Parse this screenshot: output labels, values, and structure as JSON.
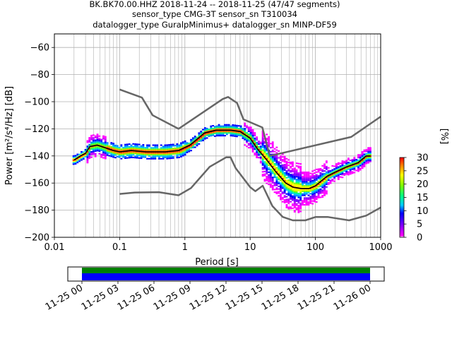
{
  "chart_data": [
    {
      "type": "heatmap",
      "title_lines": [
        "BK.BK70.00.HHZ   2018-11-24 -- 2018-11-25  (47/47 segments)",
        "sensor_type CMG-3T sensor_sn T310034",
        "datalogger_type GuralpMinimus+ datalogger_sn MINP-DF59"
      ],
      "xlabel": "Period [s]",
      "ylabel": "Power [m²/s⁴/Hz] [dB]",
      "xscale": "log",
      "xlim": [
        0.01,
        1000
      ],
      "ylim": [
        -200,
        -50
      ],
      "xticks": [
        0.01,
        0.1,
        1,
        10,
        100,
        1000
      ],
      "xtick_labels": [
        "0.01",
        "0.1",
        "1",
        "10",
        "100",
        "1000"
      ],
      "yticks": [
        -60,
        -80,
        -100,
        -120,
        -140,
        -160,
        -180,
        -200
      ],
      "ytick_labels": [
        "−60",
        "−80",
        "−100",
        "−120",
        "−140",
        "−160",
        "−180",
        "−200"
      ],
      "grid": true,
      "series": [
        {
          "role": "noise-model-high",
          "color": "#666666",
          "points": [
            [
              0.1,
              -91
            ],
            [
              0.22,
              -97
            ],
            [
              0.32,
              -110
            ],
            [
              0.8,
              -120
            ],
            [
              3.8,
              -98
            ],
            [
              4.6,
              -96.5
            ],
            [
              6.3,
              -101
            ],
            [
              7.9,
              -113
            ],
            [
              15.4,
              -119
            ],
            [
              20,
              -140
            ],
            [
              354,
              -126
            ],
            [
              1000,
              -111
            ]
          ]
        },
        {
          "role": "noise-model-low",
          "color": "#666666",
          "points": [
            [
              0.1,
              -168
            ],
            [
              0.17,
              -167
            ],
            [
              0.4,
              -166.7
            ],
            [
              0.8,
              -169
            ],
            [
              1.24,
              -163.7
            ],
            [
              2.4,
              -148
            ],
            [
              4.3,
              -141
            ],
            [
              5,
              -141
            ],
            [
              6,
              -149
            ],
            [
              10,
              -163
            ],
            [
              12,
              -166
            ],
            [
              15.6,
              -162
            ],
            [
              21.9,
              -177
            ],
            [
              31.6,
              -185
            ],
            [
              45,
              -187.5
            ],
            [
              70,
              -187.5
            ],
            [
              101,
              -185
            ],
            [
              154,
              -185
            ],
            [
              328,
              -187.5
            ],
            [
              600,
              -184
            ],
            [
              1000,
              -178
            ]
          ]
        },
        {
          "role": "mode",
          "color": "#000000",
          "points": [
            [
              0.02,
              -143
            ],
            [
              0.025,
              -140
            ],
            [
              0.03,
              -138
            ],
            [
              0.035,
              -133
            ],
            [
              0.045,
              -132
            ],
            [
              0.06,
              -134
            ],
            [
              0.08,
              -136
            ],
            [
              0.1,
              -137
            ],
            [
              0.15,
              -136
            ],
            [
              0.25,
              -137
            ],
            [
              0.5,
              -137
            ],
            [
              0.8,
              -136
            ],
            [
              1.2,
              -132
            ],
            [
              1.6,
              -127
            ],
            [
              2,
              -123
            ],
            [
              3,
              -121
            ],
            [
              5,
              -121
            ],
            [
              7,
              -122
            ],
            [
              10,
              -127
            ],
            [
              13,
              -135
            ],
            [
              18,
              -143
            ],
            [
              25,
              -152
            ],
            [
              35,
              -160
            ],
            [
              45,
              -163
            ],
            [
              60,
              -164
            ],
            [
              80,
              -164
            ],
            [
              100,
              -162
            ],
            [
              150,
              -155
            ],
            [
              200,
              -152
            ],
            [
              300,
              -148
            ],
            [
              450,
              -145
            ],
            [
              600,
              -140
            ],
            [
              700,
              -140
            ]
          ]
        }
      ],
      "colorbar": {
        "label": "[%]",
        "min": 0,
        "max": 30,
        "ticks": [
          0,
          5,
          10,
          15,
          20,
          25,
          30
        ]
      },
      "coverage_bar": {
        "xtick_labels": [
          "11-25 00",
          "11-25 03",
          "11-25 06",
          "11-25 09",
          "11-25 12",
          "11-25 15",
          "11-25 18",
          "11-25 21",
          "11-26 00"
        ],
        "colors": [
          "#008000",
          "#0000ff"
        ]
      }
    }
  ]
}
